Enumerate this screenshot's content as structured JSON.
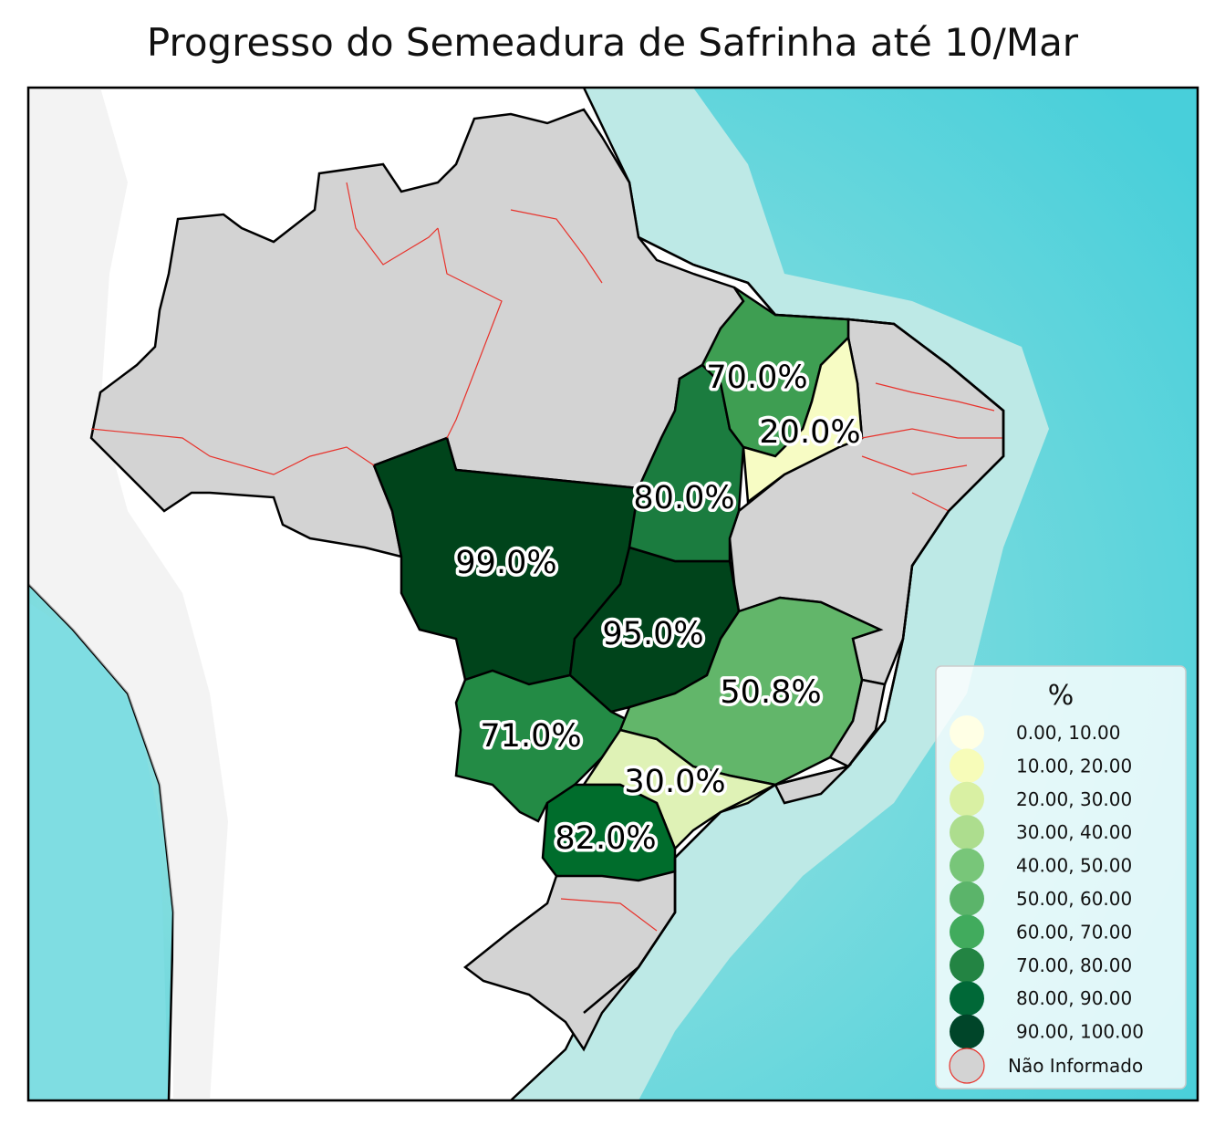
{
  "title": "Progresso do Semeadura de Safrinha até 10/Mar",
  "colors": {
    "ocean": "#5fd3dd",
    "ocean_deep": "#46cdd9",
    "shelf": "#bde9e6",
    "land_outside": "#ffffff",
    "no_info": "#d3d3d3",
    "border": "#000000",
    "region_border": "#e8322b"
  },
  "regions": [
    {
      "key": "mt",
      "value": "99.0%",
      "pct": 99.0,
      "color": "#00441b"
    },
    {
      "key": "go",
      "value": "95.0%",
      "pct": 95.0,
      "color": "#00441b"
    },
    {
      "key": "pr",
      "value": "82.0%",
      "pct": 82.0,
      "color": "#006d2c"
    },
    {
      "key": "to",
      "value": "80.0%",
      "pct": 80.0,
      "color": "#1b7c3f"
    },
    {
      "key": "ms",
      "value": "71.0%",
      "pct": 71.0,
      "color": "#238b45"
    },
    {
      "key": "ma",
      "value": "70.0%",
      "pct": 70.0,
      "color": "#3e9e52"
    },
    {
      "key": "mg",
      "value": "50.8%",
      "pct": 50.8,
      "color": "#62b66a"
    },
    {
      "key": "sp",
      "value": "30.0%",
      "pct": 30.0,
      "color": "#dff2b6"
    },
    {
      "key": "pi",
      "value": "20.0%",
      "pct": 20.0,
      "color": "#f7fcc4"
    }
  ],
  "legend": {
    "title": "%",
    "items": [
      {
        "label": "0.00,  10.00",
        "color": "#ffffe5"
      },
      {
        "label": "10.00,  20.00",
        "color": "#f7fcb9"
      },
      {
        "label": "20.00,  30.00",
        "color": "#d9f0a3"
      },
      {
        "label": "30.00,  40.00",
        "color": "#addd8e"
      },
      {
        "label": "40.00,  50.00",
        "color": "#78c679"
      },
      {
        "label": "50.00,  60.00",
        "color": "#5bb46a"
      },
      {
        "label": "60.00,  70.00",
        "color": "#41ab5d"
      },
      {
        "label": "70.00,  80.00",
        "color": "#238443"
      },
      {
        "label": "80.00,  90.00",
        "color": "#006837"
      },
      {
        "label": "90.00, 100.00",
        "color": "#004529"
      }
    ],
    "no_info_label": "Não Informado"
  }
}
